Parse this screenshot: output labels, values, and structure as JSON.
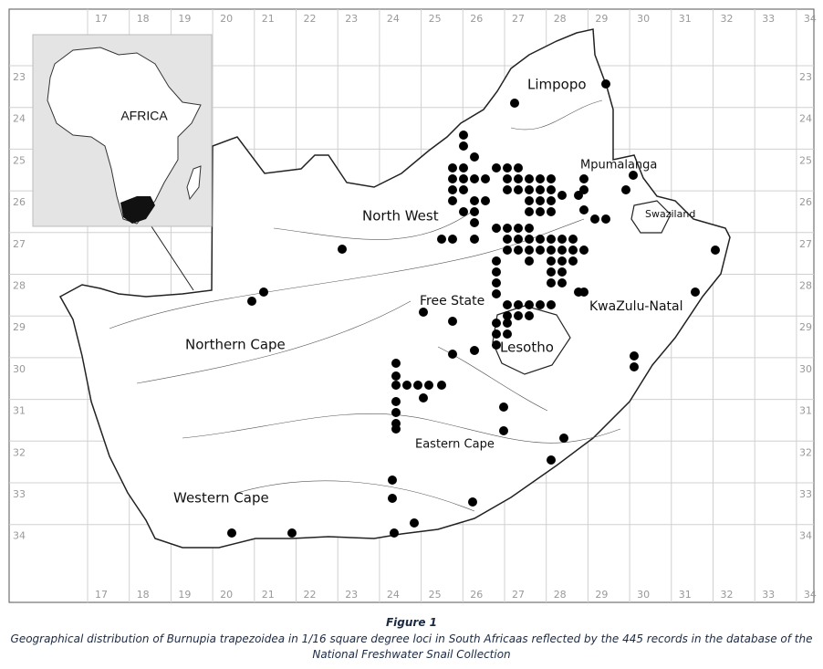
{
  "map": {
    "longitude_labels": [
      "17",
      "18",
      "19",
      "20",
      "21",
      "22",
      "23",
      "24",
      "25",
      "26",
      "27",
      "28",
      "29",
      "30",
      "31",
      "32",
      "33",
      "34"
    ],
    "latitude_labels": [
      "23",
      "24",
      "25",
      "26",
      "27",
      "28",
      "29",
      "30",
      "31",
      "32",
      "33",
      "34"
    ],
    "inset_label": "AFRICA",
    "regions": [
      "Limpopo",
      "Mpumalanga",
      "North West",
      "Swaziland",
      "Free State",
      "KwaZulu-Natal",
      "Northern Cape",
      "Lesotho",
      "Eastern Cape",
      "Western Cape"
    ]
  },
  "caption": {
    "title": "Figure 1",
    "lines": [
      "Geographical distribution of Burnupia trapezoidea in 1/16 square degree loci in South Africaas reflected by the 445 records in the database of the",
      "National Freshwater Snail Collection"
    ]
  }
}
